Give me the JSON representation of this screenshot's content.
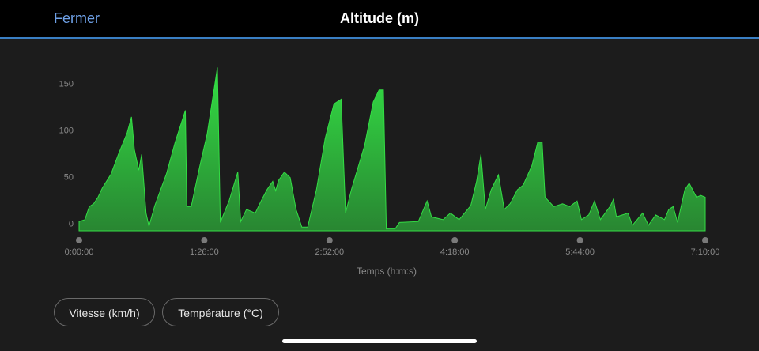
{
  "header": {
    "close": "Fermer"
  },
  "chart_data": {
    "type": "area",
    "title": "Altitude (m)",
    "x_label": "Temps (h:m:s)",
    "color": "#33dd44",
    "x": [
      0,
      4,
      7,
      10,
      13,
      16,
      22,
      27,
      33,
      36,
      38,
      41,
      43,
      46,
      48,
      52,
      60,
      66,
      73,
      74,
      77,
      83,
      88,
      95,
      97,
      103,
      109,
      111,
      115,
      121,
      125,
      129,
      133,
      135,
      137,
      141,
      145,
      149,
      153,
      157,
      163,
      169,
      175,
      180,
      183,
      187,
      196,
      202,
      206,
      209,
      211,
      217,
      220,
      233,
      239,
      242,
      250,
      255,
      261,
      269,
      273,
      276,
      279,
      283,
      288,
      292,
      296,
      301,
      305,
      311,
      315,
      318,
      320,
      326,
      332,
      337,
      342,
      345,
      350,
      354,
      358,
      365,
      367,
      369,
      377,
      380,
      387,
      391,
      396,
      402,
      405,
      408,
      411,
      416,
      419,
      424,
      427,
      430
    ],
    "values": [
      3,
      5,
      19,
      22,
      29,
      39,
      54,
      75,
      98,
      115,
      80,
      58,
      75,
      12,
      -2,
      20,
      54,
      88,
      122,
      19,
      19,
      63,
      97,
      168,
      2,
      25,
      56,
      3,
      16,
      12,
      25,
      37,
      46,
      36,
      47,
      56,
      50,
      16,
      -3,
      -3,
      37,
      92,
      129,
      134,
      12,
      37,
      84,
      131,
      144,
      144,
      -5,
      -5,
      2,
      3,
      25,
      8,
      5,
      12,
      5,
      20,
      46,
      75,
      16,
      37,
      53,
      16,
      22,
      37,
      42,
      63,
      88,
      88,
      29,
      19,
      22,
      19,
      25,
      5,
      10,
      25,
      5,
      20,
      27,
      8,
      12,
      -1,
      12,
      -1,
      10,
      5,
      16,
      19,
      2,
      37,
      44,
      29,
      31,
      29
    ],
    "xlim": [
      0,
      430
    ],
    "ylim": [
      -7,
      170
    ],
    "yticks": [
      0,
      50,
      100,
      150
    ],
    "xticks": [
      {
        "value": 0,
        "label": "0:00:00"
      },
      {
        "value": 86,
        "label": "1:26:00"
      },
      {
        "value": 172,
        "label": "2:52:00"
      },
      {
        "value": 258,
        "label": "4:18:00"
      },
      {
        "value": 344,
        "label": "5:44:00"
      },
      {
        "value": 430,
        "label": "7:10:00"
      }
    ],
    "grid": false
  },
  "buttons": [
    "Vitesse (km/h)",
    "Température (°C)"
  ]
}
